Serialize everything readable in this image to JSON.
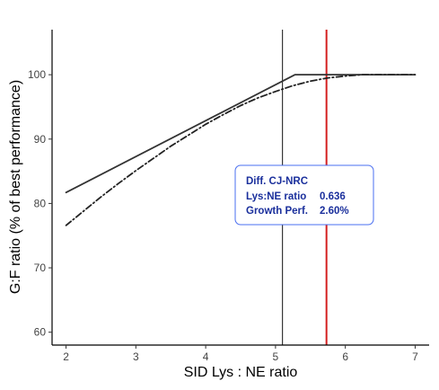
{
  "chart_data": {
    "type": "line",
    "title": "",
    "xlabel": "SID Lys : NE ratio",
    "ylabel": "G:F ratio (% of best performance)",
    "xlim": [
      1.8,
      7.2
    ],
    "ylim": [
      58,
      107
    ],
    "x_ticks": [
      2,
      3,
      4,
      5,
      6,
      7
    ],
    "y_ticks": [
      60,
      70,
      80,
      90,
      100
    ],
    "grid": false,
    "legend": "none",
    "series": [
      {
        "style": "solid",
        "color": "#333333",
        "x": [
          2.0,
          5.28,
          7.0
        ],
        "y": [
          81.7,
          100.0,
          100.0
        ]
      },
      {
        "style": "dashdot",
        "color": "#222222",
        "x": [
          2.0,
          2.25,
          2.5,
          2.75,
          3.0,
          3.25,
          3.5,
          3.75,
          4.0,
          4.25,
          4.5,
          4.75,
          5.0,
          5.25,
          5.5,
          5.75,
          6.0,
          6.25,
          6.5,
          7.0
        ],
        "y": [
          76.6,
          78.8,
          81.0,
          83.1,
          85.1,
          87.0,
          88.9,
          90.6,
          92.3,
          93.8,
          95.2,
          96.4,
          97.4,
          98.3,
          99.0,
          99.5,
          99.8,
          100.0,
          100.0,
          100.0
        ]
      }
    ],
    "vlines": [
      {
        "x": 5.1,
        "color": "#111111"
      },
      {
        "x": 5.73,
        "color": "#d41f1f"
      }
    ],
    "annotation": {
      "title": "Diff. CJ-NRC",
      "rows": [
        {
          "label": "Lys:NE ratio",
          "value": "0.636"
        },
        {
          "label": "Growth Perf.",
          "value": "2.60%"
        }
      ],
      "text_color": "#1a2f9c",
      "border_color": "#4a6ff0"
    }
  }
}
